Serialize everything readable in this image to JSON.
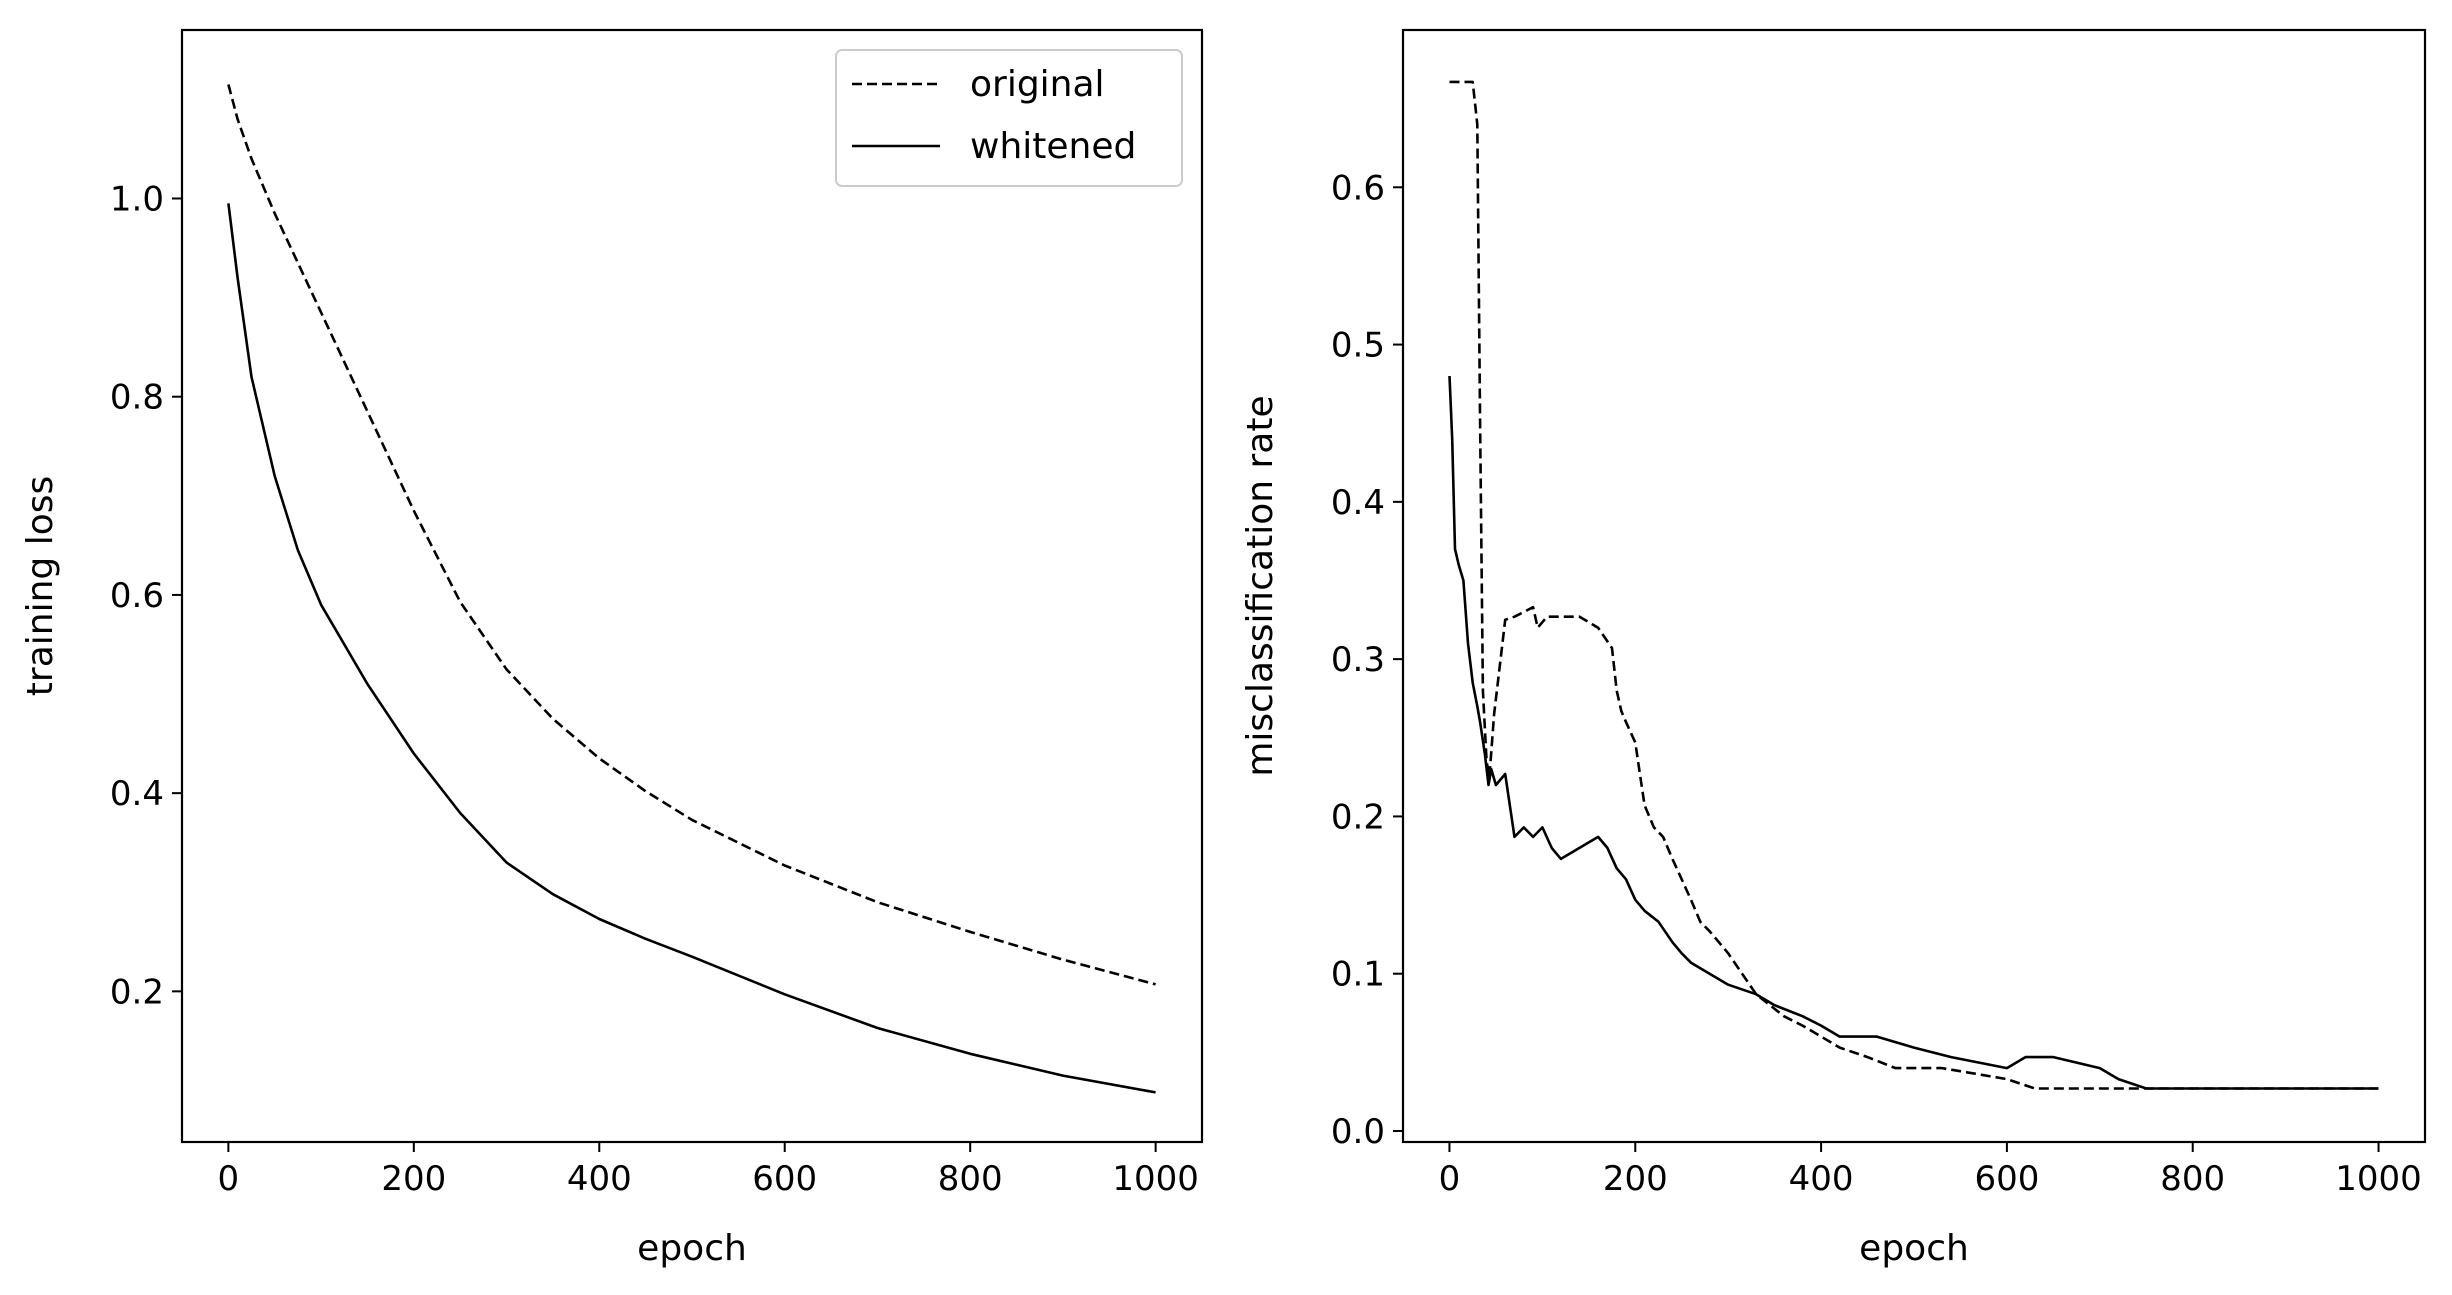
{
  "chart_data": [
    {
      "type": "line",
      "title": "",
      "xlabel": "epoch",
      "ylabel": "training loss",
      "xlim": [
        -50,
        1050
      ],
      "ylim": [
        0.048,
        1.17
      ],
      "xticks": [
        0,
        200,
        400,
        600,
        800,
        1000
      ],
      "xtick_labels": [
        "0",
        "200",
        "400",
        "600",
        "800",
        "1000"
      ],
      "yticks": [
        0.2,
        0.4,
        0.6,
        0.8,
        1.0
      ],
      "ytick_labels": [
        "0.2",
        "0.4",
        "0.6",
        "0.8",
        "1.0"
      ],
      "grid": false,
      "legend": "top-right",
      "series": [
        {
          "name": "original",
          "style": "dashed",
          "color": "#000000",
          "x": [
            0,
            10,
            25,
            50,
            75,
            100,
            150,
            200,
            250,
            300,
            350,
            400,
            450,
            500,
            600,
            700,
            800,
            900,
            1000
          ],
          "y": [
            1.115,
            1.08,
            1.04,
            0.985,
            0.935,
            0.885,
            0.785,
            0.685,
            0.593,
            0.525,
            0.475,
            0.435,
            0.402,
            0.373,
            0.327,
            0.29,
            0.26,
            0.232,
            0.207
          ]
        },
        {
          "name": "whitened",
          "style": "solid",
          "color": "#000000",
          "x": [
            0,
            10,
            25,
            50,
            75,
            100,
            150,
            200,
            250,
            300,
            350,
            400,
            450,
            500,
            600,
            700,
            800,
            900,
            1000
          ],
          "y": [
            0.995,
            0.92,
            0.82,
            0.72,
            0.645,
            0.59,
            0.51,
            0.44,
            0.38,
            0.33,
            0.298,
            0.273,
            0.253,
            0.235,
            0.197,
            0.163,
            0.137,
            0.115,
            0.098
          ]
        }
      ]
    },
    {
      "type": "line",
      "title": "",
      "xlabel": "epoch",
      "ylabel": "misclassification rate",
      "xlim": [
        -50,
        1050
      ],
      "ylim": [
        -0.007,
        0.7
      ],
      "xticks": [
        0,
        200,
        400,
        600,
        800,
        1000
      ],
      "xtick_labels": [
        "0",
        "200",
        "400",
        "600",
        "800",
        "1000"
      ],
      "yticks": [
        0.0,
        0.1,
        0.2,
        0.3,
        0.4,
        0.5,
        0.6
      ],
      "ytick_labels": [
        "0.0",
        "0.1",
        "0.2",
        "0.3",
        "0.4",
        "0.5",
        "0.6"
      ],
      "grid": false,
      "legend": "none",
      "series": [
        {
          "name": "original",
          "style": "dashed",
          "color": "#000000",
          "x": [
            0,
            25,
            30,
            33,
            36,
            40,
            43,
            48,
            55,
            60,
            70,
            90,
            95,
            105,
            140,
            160,
            175,
            180,
            185,
            190,
            200,
            205,
            210,
            220,
            230,
            240,
            250,
            260,
            270,
            280,
            290,
            300,
            315,
            330,
            345,
            360,
            380,
            400,
            420,
            450,
            480,
            530,
            600,
            630,
            700,
            760,
            1000
          ],
          "y": [
            0.667,
            0.667,
            0.64,
            0.45,
            0.28,
            0.235,
            0.225,
            0.265,
            0.3,
            0.325,
            0.327,
            0.333,
            0.32,
            0.327,
            0.327,
            0.32,
            0.307,
            0.28,
            0.267,
            0.26,
            0.247,
            0.227,
            0.207,
            0.193,
            0.187,
            0.173,
            0.16,
            0.147,
            0.133,
            0.127,
            0.12,
            0.113,
            0.1,
            0.087,
            0.08,
            0.073,
            0.067,
            0.06,
            0.053,
            0.047,
            0.04,
            0.04,
            0.033,
            0.027,
            0.027,
            0.027,
            0.027
          ]
        },
        {
          "name": "whitened",
          "style": "solid",
          "color": "#000000",
          "x": [
            0,
            3,
            6,
            10,
            15,
            20,
            25,
            30,
            33,
            38,
            42,
            45,
            50,
            60,
            70,
            80,
            90,
            100,
            110,
            120,
            140,
            160,
            170,
            180,
            190,
            200,
            210,
            225,
            240,
            250,
            260,
            280,
            300,
            330,
            350,
            380,
            400,
            420,
            460,
            500,
            540,
            600,
            620,
            650,
            700,
            720,
            750,
            1000
          ],
          "y": [
            0.48,
            0.44,
            0.37,
            0.36,
            0.35,
            0.31,
            0.285,
            0.27,
            0.26,
            0.24,
            0.22,
            0.23,
            0.22,
            0.227,
            0.187,
            0.193,
            0.187,
            0.193,
            0.18,
            0.173,
            0.18,
            0.187,
            0.18,
            0.167,
            0.16,
            0.147,
            0.14,
            0.133,
            0.12,
            0.113,
            0.107,
            0.1,
            0.093,
            0.087,
            0.08,
            0.073,
            0.067,
            0.06,
            0.06,
            0.053,
            0.047,
            0.04,
            0.047,
            0.047,
            0.04,
            0.033,
            0.027,
            0.027
          ]
        }
      ]
    }
  ]
}
